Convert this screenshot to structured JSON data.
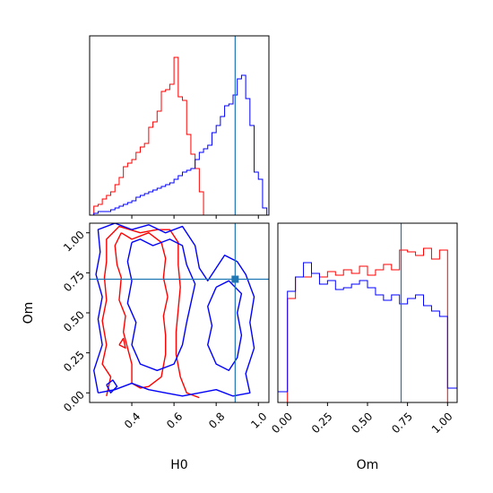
{
  "chart_data": [
    {
      "panel": "H0 marginal",
      "type": "histogram",
      "xlim": [
        0.2,
        1.05
      ],
      "x_ticks": [
        0.4,
        0.6,
        0.8,
        1.0
      ],
      "truth_line": 0.89,
      "series": [
        {
          "color": "#ff0000",
          "bin_edges": [
            0.22,
            0.24,
            0.26,
            0.28,
            0.3,
            0.32,
            0.34,
            0.36,
            0.38,
            0.4,
            0.42,
            0.44,
            0.46,
            0.48,
            0.5,
            0.52,
            0.54,
            0.56,
            0.58,
            0.6,
            0.62,
            0.64,
            0.66,
            0.68,
            0.7,
            0.72,
            0.74
          ],
          "counts": [
            0.05,
            0.06,
            0.09,
            0.11,
            0.13,
            0.17,
            0.21,
            0.27,
            0.29,
            0.31,
            0.35,
            0.38,
            0.4,
            0.49,
            0.52,
            0.58,
            0.69,
            0.7,
            0.73,
            0.88,
            0.66,
            0.64,
            0.45,
            0.34,
            0.26,
            0.13
          ]
        },
        {
          "color": "#0000ff",
          "bin_edges": [
            0.22,
            0.24,
            0.26,
            0.28,
            0.3,
            0.32,
            0.34,
            0.36,
            0.38,
            0.4,
            0.42,
            0.44,
            0.46,
            0.48,
            0.5,
            0.52,
            0.54,
            0.56,
            0.58,
            0.6,
            0.62,
            0.64,
            0.66,
            0.68,
            0.7,
            0.72,
            0.74,
            0.76,
            0.78,
            0.8,
            0.82,
            0.84,
            0.86,
            0.88,
            0.9,
            0.92,
            0.94,
            0.96,
            0.98,
            1.0,
            1.02,
            1.04
          ],
          "counts": [
            0.01,
            0.02,
            0.02,
            0.02,
            0.03,
            0.04,
            0.05,
            0.06,
            0.07,
            0.08,
            0.1,
            0.11,
            0.12,
            0.13,
            0.14,
            0.15,
            0.16,
            0.17,
            0.18,
            0.2,
            0.22,
            0.24,
            0.25,
            0.26,
            0.31,
            0.35,
            0.37,
            0.39,
            0.46,
            0.5,
            0.55,
            0.61,
            0.62,
            0.67,
            0.76,
            0.78,
            0.65,
            0.5,
            0.24,
            0.2,
            0.04
          ]
        }
      ]
    },
    {
      "panel": "H0 vs Om 2D",
      "type": "contour",
      "xlabel": "H0",
      "ylabel": "Om",
      "xlim": [
        0.2,
        1.05
      ],
      "ylim": [
        -0.06,
        1.06
      ],
      "x_ticks": [
        0.4,
        0.6,
        0.8,
        1.0
      ],
      "x_tick_labels": [
        "0.4",
        "0.6",
        "0.8",
        "1.0"
      ],
      "y_ticks": [
        0.0,
        0.25,
        0.5,
        0.75,
        1.0
      ],
      "y_tick_labels": [
        "0.00",
        "0.25",
        "0.50",
        "0.75",
        "1.00"
      ],
      "truth": [
        0.89,
        0.71
      ],
      "contours": [
        {
          "color": "#ff0000",
          "points": [
            [
              0.28,
              -0.02
            ],
            [
              0.3,
              0.1
            ],
            [
              0.26,
              0.18
            ],
            [
              0.28,
              0.3
            ],
            [
              0.26,
              0.45
            ],
            [
              0.28,
              0.58
            ],
            [
              0.27,
              0.72
            ],
            [
              0.28,
              0.82
            ],
            [
              0.28,
              0.96
            ],
            [
              0.34,
              1.04
            ],
            [
              0.44,
              1.0
            ],
            [
              0.52,
              1.02
            ],
            [
              0.58,
              1.02
            ],
            [
              0.62,
              0.94
            ],
            [
              0.62,
              0.8
            ],
            [
              0.63,
              0.66
            ],
            [
              0.62,
              0.52
            ],
            [
              0.61,
              0.38
            ],
            [
              0.61,
              0.24
            ],
            [
              0.63,
              0.1
            ],
            [
              0.66,
              0.0
            ],
            [
              0.72,
              -0.03
            ]
          ]
        },
        {
          "color": "#ff0000",
          "points": [
            [
              0.35,
              1.0
            ],
            [
              0.32,
              0.92
            ],
            [
              0.33,
              0.8
            ],
            [
              0.35,
              0.72
            ],
            [
              0.34,
              0.58
            ],
            [
              0.37,
              0.48
            ],
            [
              0.36,
              0.38
            ],
            [
              0.38,
              0.28
            ],
            [
              0.4,
              0.18
            ],
            [
              0.4,
              0.06
            ],
            [
              0.44,
              0.03
            ],
            [
              0.48,
              0.04
            ],
            [
              0.54,
              0.1
            ],
            [
              0.56,
              0.24
            ],
            [
              0.56,
              0.36
            ],
            [
              0.55,
              0.48
            ],
            [
              0.57,
              0.6
            ],
            [
              0.55,
              0.72
            ],
            [
              0.56,
              0.84
            ],
            [
              0.54,
              0.94
            ],
            [
              0.48,
              1.0
            ],
            [
              0.4,
              0.96
            ],
            [
              0.35,
              1.0
            ]
          ]
        },
        {
          "color": "#0000ff",
          "points": [
            [
              0.24,
              0.0
            ],
            [
              0.22,
              0.14
            ],
            [
              0.26,
              0.3
            ],
            [
              0.24,
              0.46
            ],
            [
              0.26,
              0.6
            ],
            [
              0.23,
              0.74
            ],
            [
              0.25,
              0.88
            ],
            [
              0.24,
              1.02
            ],
            [
              0.32,
              1.06
            ],
            [
              0.4,
              1.02
            ],
            [
              0.48,
              1.05
            ],
            [
              0.56,
              1.0
            ],
            [
              0.64,
              1.04
            ],
            [
              0.7,
              0.92
            ],
            [
              0.72,
              0.78
            ],
            [
              0.76,
              0.7
            ],
            [
              0.8,
              0.78
            ],
            [
              0.84,
              0.86
            ],
            [
              0.9,
              0.82
            ],
            [
              0.94,
              0.74
            ],
            [
              0.98,
              0.6
            ],
            [
              0.96,
              0.44
            ],
            [
              0.98,
              0.28
            ],
            [
              0.94,
              0.12
            ],
            [
              0.96,
              0.0
            ],
            [
              0.88,
              -0.02
            ],
            [
              0.8,
              0.02
            ],
            [
              0.72,
              0.0
            ],
            [
              0.64,
              -0.02
            ],
            [
              0.56,
              0.0
            ],
            [
              0.48,
              0.02
            ],
            [
              0.4,
              0.06
            ],
            [
              0.32,
              0.02
            ],
            [
              0.24,
              0.0
            ]
          ]
        },
        {
          "color": "#0000ff",
          "points": [
            [
              0.4,
              0.94
            ],
            [
              0.38,
              0.82
            ],
            [
              0.4,
              0.7
            ],
            [
              0.38,
              0.56
            ],
            [
              0.42,
              0.44
            ],
            [
              0.4,
              0.3
            ],
            [
              0.44,
              0.18
            ],
            [
              0.52,
              0.14
            ],
            [
              0.6,
              0.18
            ],
            [
              0.64,
              0.3
            ],
            [
              0.66,
              0.44
            ],
            [
              0.68,
              0.56
            ],
            [
              0.7,
              0.68
            ],
            [
              0.66,
              0.8
            ],
            [
              0.64,
              0.92
            ],
            [
              0.58,
              0.96
            ],
            [
              0.5,
              0.92
            ],
            [
              0.44,
              0.96
            ],
            [
              0.4,
              0.94
            ]
          ]
        },
        {
          "color": "#0000ff",
          "points": [
            [
              0.8,
              0.66
            ],
            [
              0.76,
              0.54
            ],
            [
              0.78,
              0.42
            ],
            [
              0.76,
              0.3
            ],
            [
              0.8,
              0.18
            ],
            [
              0.86,
              0.14
            ],
            [
              0.9,
              0.22
            ],
            [
              0.92,
              0.36
            ],
            [
              0.9,
              0.5
            ],
            [
              0.92,
              0.62
            ],
            [
              0.86,
              0.7
            ],
            [
              0.8,
              0.66
            ]
          ]
        },
        {
          "color": "#0000ff",
          "points": [
            [
              0.28,
              0.05
            ],
            [
              0.31,
              0.08
            ],
            [
              0.33,
              0.04
            ],
            [
              0.3,
              0.0
            ],
            [
              0.28,
              0.05
            ]
          ]
        },
        {
          "color": "#ff0000",
          "points": [
            [
              0.34,
              0.3
            ],
            [
              0.36,
              0.34
            ],
            [
              0.37,
              0.28
            ],
            [
              0.34,
              0.3
            ]
          ]
        }
      ]
    },
    {
      "panel": "Om marginal",
      "type": "histogram",
      "xlabel": "Om",
      "xlim": [
        -0.06,
        1.06
      ],
      "x_ticks": [
        0.0,
        0.25,
        0.5,
        0.75,
        1.0
      ],
      "x_tick_labels": [
        "0.00",
        "0.25",
        "0.50",
        "0.75",
        "1.00"
      ],
      "truth_line": 0.71,
      "series": [
        {
          "color": "#ff0000",
          "bin_edges": [
            0.0,
            0.05,
            0.1,
            0.15,
            0.2,
            0.25,
            0.3,
            0.35,
            0.4,
            0.45,
            0.5,
            0.55,
            0.6,
            0.65,
            0.7,
            0.75,
            0.8,
            0.85,
            0.9,
            0.95,
            1.0
          ],
          "counts": [
            0.58,
            0.7,
            0.7,
            0.72,
            0.7,
            0.73,
            0.71,
            0.74,
            0.72,
            0.76,
            0.71,
            0.74,
            0.77,
            0.74,
            0.85,
            0.84,
            0.82,
            0.86,
            0.8,
            0.85
          ]
        },
        {
          "color": "#0000ff",
          "bin_edges": [
            -0.06,
            0.0,
            0.05,
            0.1,
            0.15,
            0.2,
            0.25,
            0.3,
            0.35,
            0.4,
            0.45,
            0.5,
            0.55,
            0.6,
            0.65,
            0.7,
            0.75,
            0.8,
            0.85,
            0.9,
            0.95,
            1.0,
            1.06
          ],
          "counts": [
            0.06,
            0.62,
            0.7,
            0.78,
            0.72,
            0.66,
            0.68,
            0.63,
            0.64,
            0.66,
            0.68,
            0.64,
            0.6,
            0.57,
            0.6,
            0.55,
            0.58,
            0.6,
            0.54,
            0.51,
            0.48,
            0.08
          ]
        }
      ]
    }
  ]
}
